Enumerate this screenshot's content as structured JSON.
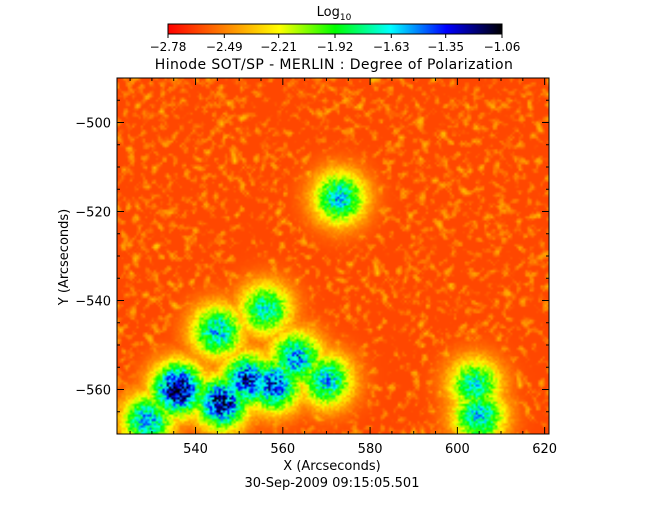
{
  "chart_data": {
    "type": "heatmap",
    "title": "Hinode SOT/SP - MERLIN : Degree of Polarization",
    "xlabel": "X (Arcseconds)",
    "ylabel": "Y (Arcseconds)",
    "footer": "30-Sep-2009 09:15:05.501",
    "xlim": [
      522,
      621
    ],
    "ylim": [
      -570,
      -490
    ],
    "x_ticks": [
      540,
      560,
      580,
      600,
      620
    ],
    "y_ticks": [
      -500,
      -520,
      -540,
      -560
    ],
    "x_tick_labels": [
      "540",
      "560",
      "580",
      "600",
      "620"
    ],
    "y_tick_labels": [
      "−500",
      "−520",
      "−540",
      "−560"
    ],
    "colorbar": {
      "label_main": "Log",
      "label_sub": "10",
      "range": [
        -2.78,
        -1.06
      ],
      "tick_values": [
        -2.78,
        -2.49,
        -2.21,
        -1.92,
        -1.63,
        -1.35,
        -1.06
      ],
      "tick_labels": [
        "−2.78",
        "−2.49",
        "−2.21",
        "−1.92",
        "−1.63",
        "−1.35",
        "−1.06"
      ],
      "colors": [
        "#ff0000",
        "#ff7f00",
        "#ffff00",
        "#00ff00",
        "#00ffff",
        "#0000ff",
        "#000000"
      ]
    },
    "field": {
      "background_log10": -2.62,
      "high_polarization_regions": [
        {
          "x": 536,
          "y": -560,
          "peak_log10": -1.06
        },
        {
          "x": 546,
          "y": -563,
          "peak_log10": -1.2
        },
        {
          "x": 552,
          "y": -558,
          "peak_log10": -1.3
        },
        {
          "x": 558,
          "y": -559,
          "peak_log10": -1.35
        },
        {
          "x": 563,
          "y": -553,
          "peak_log10": -1.5
        },
        {
          "x": 570,
          "y": -558,
          "peak_log10": -1.6
        },
        {
          "x": 545,
          "y": -547,
          "peak_log10": -1.6
        },
        {
          "x": 556,
          "y": -542,
          "peak_log10": -1.7
        },
        {
          "x": 529,
          "y": -567,
          "peak_log10": -1.55
        },
        {
          "x": 573,
          "y": -517,
          "peak_log10": -1.6
        },
        {
          "x": 605,
          "y": -566,
          "peak_log10": -1.6
        },
        {
          "x": 604,
          "y": -559,
          "peak_log10": -1.7
        }
      ]
    }
  }
}
